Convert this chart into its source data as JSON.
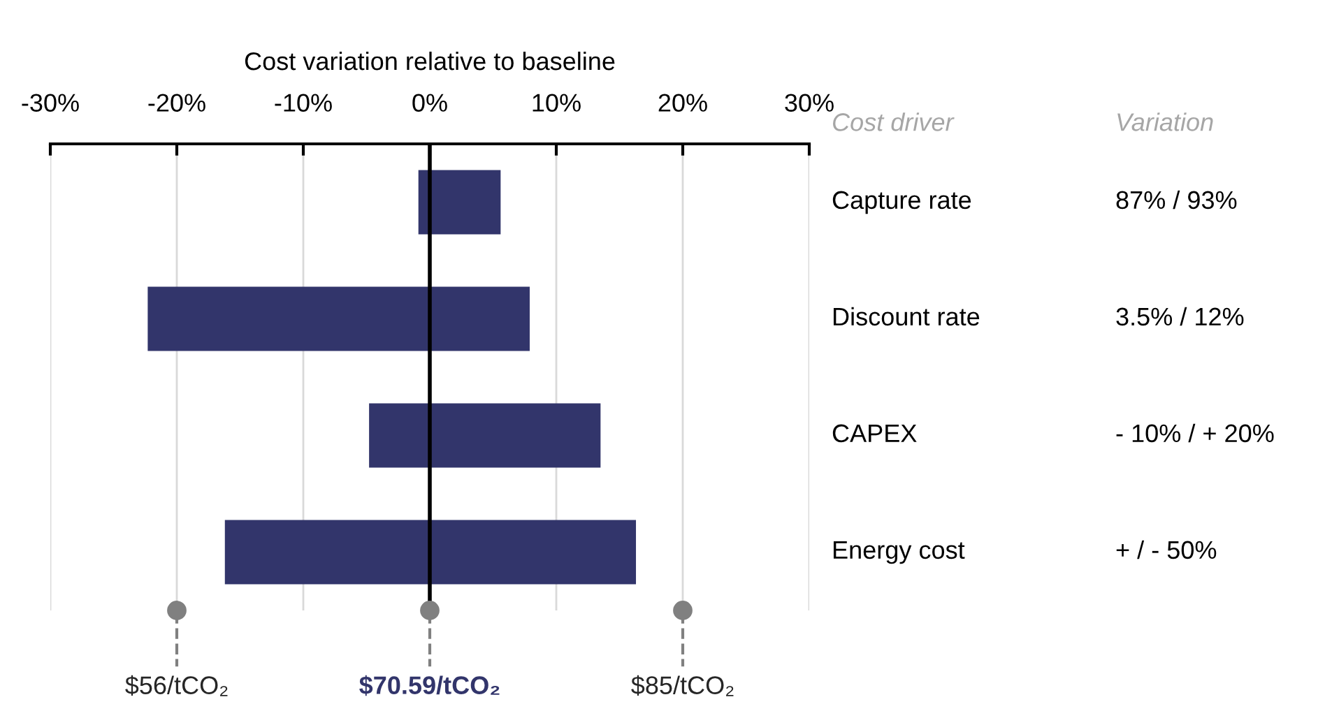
{
  "chart_data": {
    "type": "bar",
    "orientation": "horizontal",
    "xlabel": "Cost variation relative to baseline",
    "categories": [
      "Capture rate",
      "Discount rate",
      "CAPEX",
      "Energy cost"
    ],
    "base": [
      -0.9,
      -22.3,
      -4.8,
      -16.2
    ],
    "values": [
      6.5,
      30.2,
      18.3,
      32.5
    ],
    "color": "#32356b",
    "xlim": [
      -30,
      30
    ],
    "xticks": [
      {
        "value": -30,
        "label": "-30%"
      },
      {
        "value": -20,
        "label": "-20%"
      },
      {
        "value": -10,
        "label": "-10%"
      },
      {
        "value": 0,
        "label": "0%"
      },
      {
        "value": 10,
        "label": "10%"
      },
      {
        "value": 20,
        "label": "20%"
      },
      {
        "value": 30,
        "label": "30%"
      }
    ],
    "grid": "x",
    "ref_lines": [
      {
        "axis": "x",
        "value": -20,
        "label": "$56/tCO₂",
        "color": "#808080",
        "line_style": "dashed"
      },
      {
        "axis": "x",
        "value": 0,
        "label": "$70.59/tCO₂",
        "color": "#000000",
        "line_style": "solid"
      },
      {
        "axis": "x",
        "value": 20,
        "label": "$85/tCO₂",
        "color": "#808080",
        "line_style": "dashed"
      }
    ],
    "annotations": [
      "Cost driver",
      "Variation",
      "87% / 93%",
      "3.5% / 12%",
      "- 10% / + 20%",
      "+ / - 50%"
    ]
  }
}
